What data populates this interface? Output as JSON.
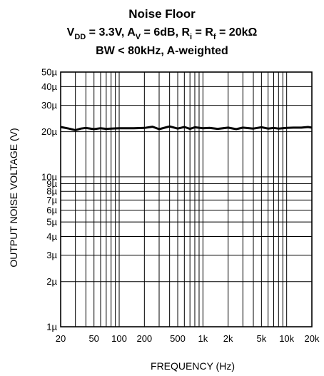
{
  "chart_data": {
    "type": "line",
    "title": "Noise Floor",
    "subtitle": {
      "line1": {
        "vdd": "V",
        "vdd_sub": "DD",
        "vdd_val": " = 3.3V, ",
        "av": "A",
        "av_sub": "V",
        "av_val": " = 6dB, ",
        "ri": "R",
        "ri_sub": "i",
        "ri_eq": " = ",
        "rf": "R",
        "rf_sub": "f",
        "rf_val": " = 20kΩ"
      },
      "line2": "BW < 80kHz, A-weighted"
    },
    "xlabel": "FREQUENCY (Hz)",
    "ylabel": "OUTPUT NOISE VOLTAGE (V)",
    "x_scale": "log",
    "y_scale": "log",
    "xlim": [
      20,
      20000
    ],
    "ylim": [
      1e-06,
      5e-05
    ],
    "grid": true,
    "x_ticks": [
      {
        "value": 20,
        "label": "20"
      },
      {
        "value": 50,
        "label": "50"
      },
      {
        "value": 100,
        "label": "100"
      },
      {
        "value": 200,
        "label": "200"
      },
      {
        "value": 500,
        "label": "500"
      },
      {
        "value": 1000,
        "label": "1k"
      },
      {
        "value": 2000,
        "label": "2k"
      },
      {
        "value": 5000,
        "label": "5k"
      },
      {
        "value": 10000,
        "label": "10k"
      },
      {
        "value": 20000,
        "label": "20k"
      }
    ],
    "y_ticks": [
      {
        "value": 1e-06,
        "label": "1µ"
      },
      {
        "value": 2e-06,
        "label": "2µ"
      },
      {
        "value": 3e-06,
        "label": "3µ"
      },
      {
        "value": 4e-06,
        "label": "4µ"
      },
      {
        "value": 5e-06,
        "label": "5µ"
      },
      {
        "value": 6e-06,
        "label": "6µ"
      },
      {
        "value": 7e-06,
        "label": "7µ"
      },
      {
        "value": 8e-06,
        "label": "8µ"
      },
      {
        "value": 9e-06,
        "label": "9µ"
      },
      {
        "value": 1e-05,
        "label": "10µ"
      },
      {
        "value": 2e-05,
        "label": "20µ"
      },
      {
        "value": 3e-05,
        "label": "30µ"
      },
      {
        "value": 4e-05,
        "label": "40µ"
      },
      {
        "value": 5e-05,
        "label": "50µ"
      }
    ],
    "series": [
      {
        "x": [
          20,
          25,
          30,
          35,
          40,
          50,
          60,
          70,
          80,
          100,
          120,
          150,
          200,
          250,
          300,
          400,
          500,
          600,
          700,
          800,
          1000,
          1200,
          1500,
          2000,
          2500,
          3000,
          4000,
          5000,
          6000,
          7000,
          8000,
          10000,
          12000,
          15000,
          18000,
          20000
        ],
        "y": [
          2.15e-05,
          2.1e-05,
          2.05e-05,
          2.1e-05,
          2.12e-05,
          2.08e-05,
          2.11e-05,
          2.09e-05,
          2.1e-05,
          2.11e-05,
          2.11e-05,
          2.11e-05,
          2.12e-05,
          2.16e-05,
          2.08e-05,
          2.17e-05,
          2.1e-05,
          2.15e-05,
          2.09e-05,
          2.14e-05,
          2.11e-05,
          2.12e-05,
          2.09e-05,
          2.13e-05,
          2.08e-05,
          2.13e-05,
          2.1e-05,
          2.14e-05,
          2.1e-05,
          2.12e-05,
          2.1e-05,
          2.12e-05,
          2.13e-05,
          2.13e-05,
          2.15e-05,
          2.13e-05
        ],
        "color": "#000000"
      }
    ]
  }
}
